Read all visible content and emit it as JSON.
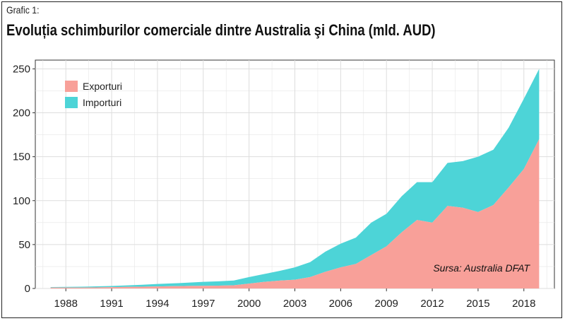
{
  "header": {
    "label": "Grafic 1:",
    "title": "Evoluția schimburilor comerciale dintre Australia şi China (mld. AUD)"
  },
  "source": "Sursa: Australia DFAT",
  "colors": {
    "exports": "#F8A099",
    "imports": "#4DD4D7",
    "panel": "#FFFFFF",
    "grid": "#E6E6E6"
  },
  "chart_data": {
    "type": "area",
    "stacked": true,
    "x": [
      1987,
      1988,
      1989,
      1990,
      1991,
      1992,
      1993,
      1994,
      1995,
      1996,
      1997,
      1998,
      1999,
      2000,
      2001,
      2002,
      2003,
      2004,
      2005,
      2006,
      2007,
      2008,
      2009,
      2010,
      2011,
      2012,
      2013,
      2014,
      2015,
      2016,
      2017,
      2018,
      2019
    ],
    "series": [
      {
        "name": "Exporturi",
        "values": [
          1,
          1,
          1,
          1.2,
          1.5,
          1.8,
          2,
          2.3,
          2.6,
          2.9,
          3,
          3.2,
          3.6,
          5.5,
          7.5,
          9,
          10,
          13,
          19,
          24,
          28,
          38,
          48,
          64,
          78,
          75,
          94,
          92,
          87,
          95,
          115,
          136,
          170
        ]
      },
      {
        "name": "Importuri",
        "values": [
          0.6,
          0.8,
          1,
          1.2,
          1.3,
          1.7,
          2.2,
          2.8,
          3.2,
          3.7,
          4.5,
          5,
          5.5,
          7.5,
          9,
          11,
          14,
          17,
          23,
          27,
          30,
          37,
          37,
          41,
          43,
          46,
          49,
          53,
          63,
          63,
          68,
          80,
          80
        ]
      }
    ],
    "xticks": [
      "1988",
      "1991",
      "1994",
      "1997",
      "2000",
      "2003",
      "2006",
      "2009",
      "2012",
      "2015",
      "2018"
    ],
    "yticks": [
      "0",
      "50",
      "100",
      "150",
      "200",
      "250"
    ],
    "ylim": [
      0,
      260
    ],
    "grid": true,
    "legend_position": "top-left"
  }
}
